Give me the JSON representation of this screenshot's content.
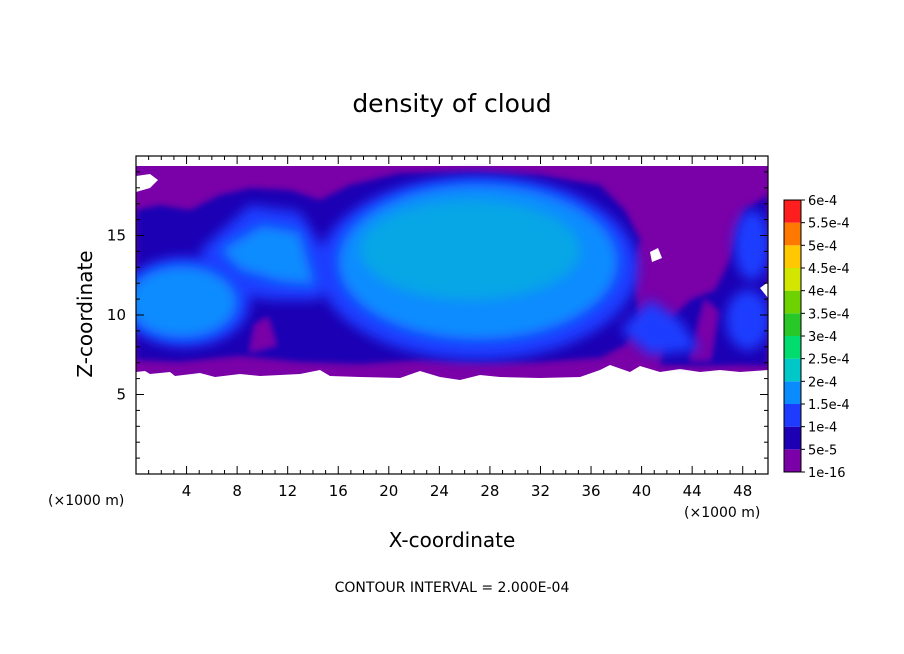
{
  "chart_data": {
    "type": "heatmap",
    "title": "density of cloud",
    "xlabel": "X-coordinate",
    "ylabel": "Z-coordinate",
    "x_unit": "(×1000 m)",
    "y_unit": "(×1000 m)",
    "footer": "CONTOUR INTERVAL = 2.000E-04",
    "xlim": [
      0,
      50
    ],
    "ylim": [
      0,
      20
    ],
    "x_ticks": [
      4,
      8,
      12,
      16,
      20,
      24,
      28,
      32,
      36,
      40,
      44,
      48
    ],
    "y_ticks": [
      5,
      10,
      15
    ],
    "colorbar": {
      "labels": [
        "1e-16",
        "5e-5",
        "1e-4",
        "1.5e-4",
        "2e-4",
        "2.5e-4",
        "3e-4",
        "3.5e-4",
        "4e-4",
        "4.5e-4",
        "5e-4",
        "5.5e-4",
        "6e-4"
      ],
      "colors": [
        "#7a00a8",
        "#1e00b4",
        "#1e3cff",
        "#0a8cff",
        "#00c8c8",
        "#00dc6e",
        "#28c828",
        "#6ed200",
        "#d2e600",
        "#ffc800",
        "#ff7800",
        "#ff1e1e",
        "#ff6464",
        "#ff9696"
      ]
    },
    "cloud_layer": {
      "z_base": 6.2,
      "z_top": 19.0,
      "background_level": "1e-16",
      "cores": [
        {
          "x_range": [
            15.5,
            39
          ],
          "z_range": [
            6.5,
            18.5
          ],
          "peak": "1.5e-4"
        },
        {
          "x_range": [
            0,
            8.5
          ],
          "z_range": [
            7,
            13
          ],
          "peak": "1.5e-4"
        },
        {
          "x_range": [
            3,
            16
          ],
          "z_range": [
            11,
            17
          ],
          "peak": "1e-4"
        },
        {
          "x_range": [
            44,
            50
          ],
          "z_range": [
            7,
            11
          ],
          "peak": "1e-4"
        },
        {
          "x_range": [
            46,
            50
          ],
          "z_range": [
            12,
            18
          ],
          "peak": "5e-5"
        }
      ]
    }
  }
}
